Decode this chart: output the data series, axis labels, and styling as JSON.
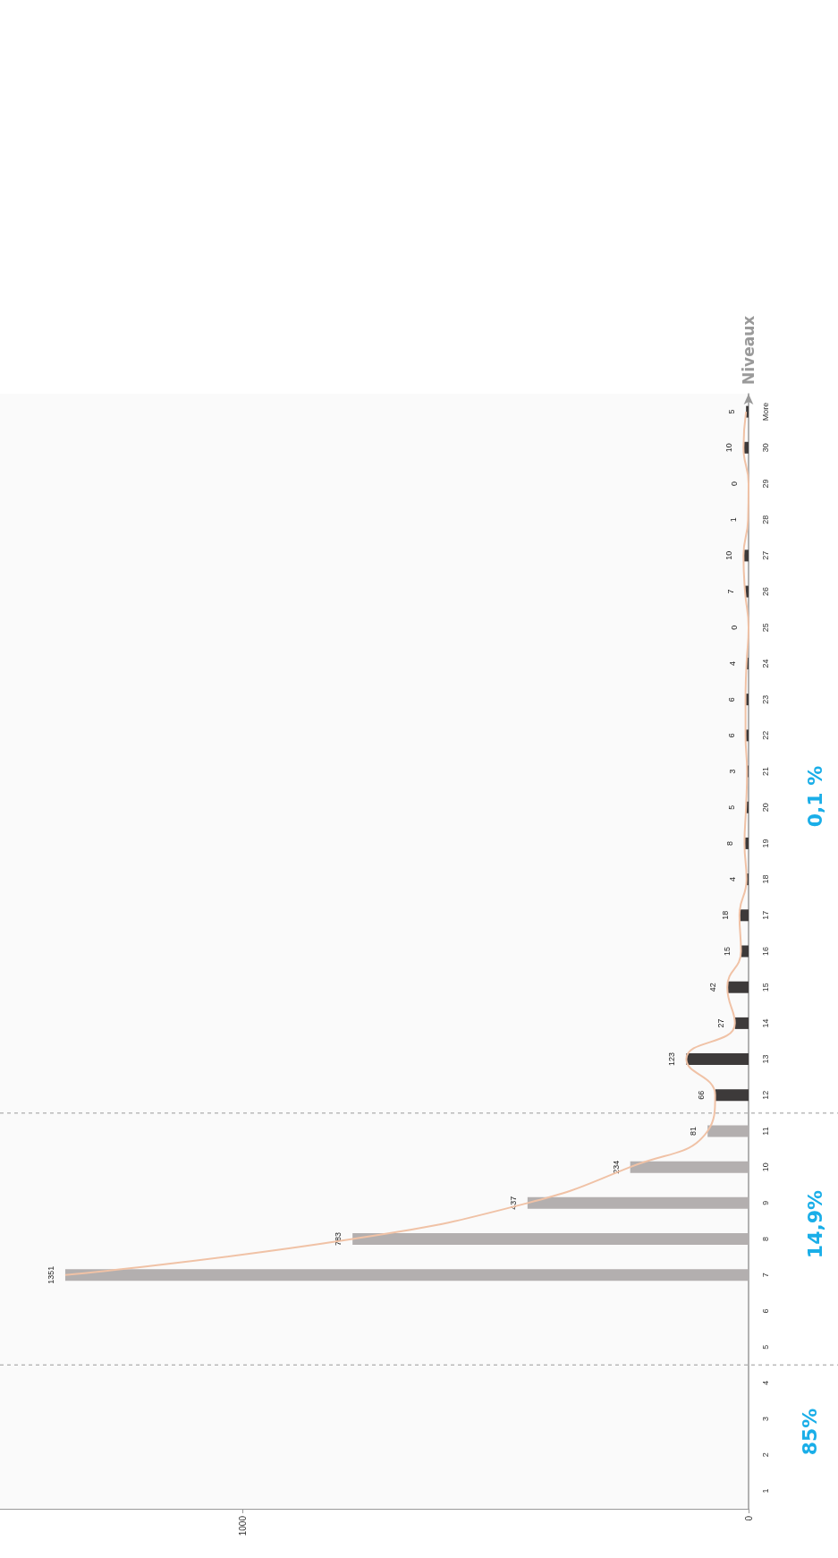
{
  "chart_data": {
    "type": "bar",
    "orientation": "horizontal",
    "ylabel": "Niveaux",
    "categories": [
      "More",
      "30",
      "29",
      "28",
      "27",
      "26",
      "25",
      "24",
      "23",
      "22",
      "21",
      "20",
      "19",
      "18",
      "17",
      "16",
      "15",
      "14",
      "13",
      "12",
      "11",
      "10",
      "9",
      "8",
      "7",
      "6",
      "5",
      "4",
      "3",
      "2",
      "1"
    ],
    "series": [
      {
        "value_labels": [
          "5",
          "10",
          "0",
          "1",
          "10",
          "7",
          "0",
          "4",
          "6",
          "6",
          "3",
          "5",
          "8",
          "4",
          "18",
          "15",
          "42",
          "27",
          "123",
          "66",
          "81",
          "234",
          "437",
          "783",
          "1351",
          null,
          null,
          null,
          null,
          null,
          null
        ],
        "values": [
          5,
          10,
          0,
          1,
          10,
          7,
          0,
          4,
          6,
          6,
          3,
          5,
          8,
          4,
          18,
          15,
          42,
          27,
          123,
          66,
          81,
          234,
          437,
          783,
          1351,
          null,
          null,
          null,
          null,
          null,
          null
        ],
        "colors": [
          "#3d3a3a",
          "#3d3a3a",
          "#3d3a3a",
          "#3d3a3a",
          "#3d3a3a",
          "#3d3a3a",
          "#3d3a3a",
          "#3d3a3a",
          "#3d3a3a",
          "#3d3a3a",
          "#3d3a3a",
          "#3d3a3a",
          "#3d3a3a",
          "#3d3a3a",
          "#3d3a3a",
          "#3d3a3a",
          "#3d3a3a",
          "#3d3a3a",
          "#3d3a3a",
          "#3d3a3a",
          "#b3afaf",
          "#b3afaf",
          "#b3afaf",
          "#b3afaf",
          "#b3afaf",
          "#b3afaf",
          "#b3afaf",
          "#b3afaf",
          "#b3afaf",
          "#b3afaf",
          "#b3afaf"
        ]
      },
      {
        "type": "line",
        "color": "#f0c2a6",
        "values": [
          5,
          10,
          0,
          1,
          10,
          7,
          0,
          4,
          6,
          6,
          3,
          5,
          8,
          4,
          18,
          15,
          42,
          27,
          123,
          66,
          81,
          234,
          437,
          783,
          1351,
          null,
          null,
          null,
          null,
          null,
          null
        ]
      }
    ],
    "xlim": [
      1480,
      0
    ],
    "xticks": [
      0,
      1000
    ],
    "marker": "none",
    "annotations": [
      "85%",
      "14,9%",
      "0,1 %"
    ]
  }
}
